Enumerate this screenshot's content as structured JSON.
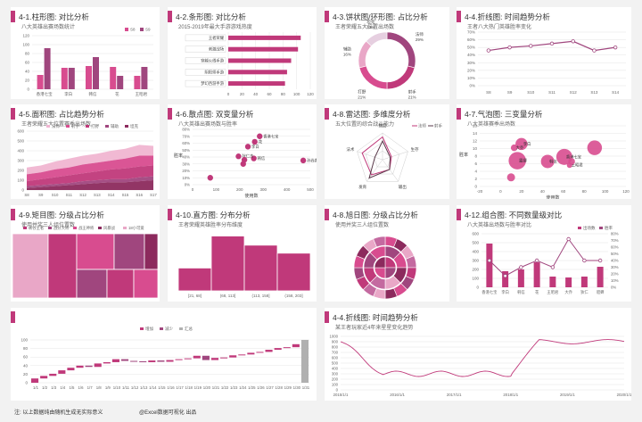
{
  "colors": {
    "pink": "#d84c8f",
    "purple": "#a0467e",
    "magenta": "#c0397a",
    "dark": "#8c2a5d",
    "light": "#e9a7c7",
    "grid": "#e5e5e5"
  },
  "footer": {
    "note": "注: 以上数据纯由随机生成无实际意义",
    "brand": "@Excel数据可视化 出品"
  },
  "chart_data": [
    {
      "id": "c1",
      "type": "bar",
      "title": "4-1.柱形图:  对比分析",
      "subtitle": "八大英雄出赛场数统计",
      "categories": [
        "香港七宝",
        "李白",
        "韩信",
        "花",
        "王昭君"
      ],
      "series": [
        {
          "name": "S8",
          "values": [
            32,
            48,
            52,
            50,
            30
          ]
        },
        {
          "name": "S9",
          "values": [
            92,
            48,
            72,
            30,
            50
          ]
        }
      ],
      "ylim": [
        0,
        120
      ],
      "yticks": [
        0,
        20,
        40,
        60,
        80,
        100,
        120
      ]
    },
    {
      "id": "c2",
      "type": "bar",
      "title": "4-2.条形图:  对比分析",
      "subtitle": "2015-2019年最大手游游戏热度",
      "categories": [
        "王者荣耀",
        "刺激战场",
        "穿越火线手游",
        "阴阳师手游",
        "梦幻西游手游"
      ],
      "values": [
        106,
        102,
        92,
        86,
        83
      ],
      "xlim": [
        0,
        120
      ],
      "xticks": [
        0,
        20,
        40,
        60,
        80,
        100,
        120
      ]
    },
    {
      "id": "c3",
      "type": "pie",
      "title": "4-3.饼状图/环形图:  占比分析",
      "subtitle": "王者荣耀五大位置出场数",
      "labels": [
        "法师",
        "射手",
        "打野",
        "辅助",
        "坦克"
      ],
      "values": [
        29,
        21,
        21,
        16,
        13
      ],
      "percent_labels": [
        "29%",
        "21%",
        "21%",
        "16%",
        "13%"
      ]
    },
    {
      "id": "c4",
      "type": "line",
      "title": "4-4.折线图:  时间趋势分析",
      "subtitle": "王者八大热门英雄胜率变化",
      "categories": [
        "S8",
        "S9",
        "S10",
        "S11",
        "S12",
        "S13",
        "S14"
      ],
      "values": [
        46,
        50,
        52,
        55,
        58,
        46,
        50
      ],
      "ylim": [
        0,
        70
      ],
      "yticks": [
        "0%",
        "10%",
        "20%",
        "30%",
        "40%",
        "50%",
        "60%",
        "70%"
      ]
    },
    {
      "id": "c5",
      "type": "area",
      "title": "4-5.面积图:  占比趋势分析",
      "subtitle": "王者荣耀五大位置赛季出场数",
      "categories": [
        "S8",
        "S9",
        "S10",
        "S11",
        "S12",
        "S13",
        "S14",
        "S15",
        "S16",
        "S17"
      ],
      "series": [
        {
          "name": "法师",
          "values": [
            70,
            70,
            80,
            90,
            90,
            90,
            100,
            100,
            110,
            100
          ]
        },
        {
          "name": "射手",
          "values": [
            70,
            70,
            80,
            80,
            90,
            90,
            90,
            100,
            110,
            100
          ]
        },
        {
          "name": "打野",
          "values": [
            50,
            60,
            70,
            80,
            80,
            90,
            100,
            110,
            110,
            110
          ]
        },
        {
          "name": "辅助",
          "values": [
            20,
            20,
            20,
            20,
            30,
            30,
            30,
            30,
            40,
            40
          ]
        },
        {
          "name": "坦克",
          "values": [
            20,
            30,
            40,
            50,
            60,
            70,
            80,
            80,
            90,
            100
          ]
        }
      ],
      "ylim": [
        0,
        600
      ],
      "yticks": [
        0,
        100,
        200,
        300,
        400,
        500,
        600
      ]
    },
    {
      "id": "c6",
      "type": "scatter",
      "title": "4-6.散点图:  双变量分析",
      "subtitle": "八大英雄出赛场数与胜率",
      "xlabel": "使用数",
      "ylabel": "胜率",
      "points": [
        {
          "label": "香港七宝",
          "x": 285,
          "y": 70
        },
        {
          "label": "花",
          "x": 264,
          "y": 62
        },
        {
          "label": "李白",
          "x": 235,
          "y": 55
        },
        {
          "label": "韩信",
          "x": 260,
          "y": 38
        },
        {
          "label": "狄仁杰",
          "x": 195,
          "y": 41
        },
        {
          "label": "",
          "x": 220,
          "y": 36
        },
        {
          "label": "",
          "x": 215,
          "y": 30
        },
        {
          "label": "孙尚香",
          "x": 470,
          "y": 35
        },
        {
          "label": "",
          "x": 75,
          "y": 10
        }
      ],
      "xlim": [
        0,
        500
      ],
      "ylim": [
        0,
        80
      ],
      "xticks": [
        0,
        100,
        200,
        300,
        400,
        500
      ],
      "yticks": [
        "0%",
        "10%",
        "20%",
        "30%",
        "40%",
        "50%",
        "60%",
        "70%",
        "80%"
      ]
    },
    {
      "id": "c7",
      "type": "radar",
      "title": "4-8.雷达图:  多维度分析",
      "subtitle": "五大位置的综合战斗能力",
      "axes": [
        "辅助",
        "生存",
        "输出",
        "发育",
        "法术"
      ],
      "series": [
        {
          "name": "法师",
          "values": [
            0.85,
            0.35,
            0.45,
            0.7,
            0.8
          ]
        },
        {
          "name": "射手",
          "values": [
            0.7,
            0.3,
            0.45,
            0.85,
            0.3
          ]
        }
      ]
    },
    {
      "id": "c8",
      "type": "scatter",
      "title": "4-7.气泡图:  三变量分析",
      "subtitle": "八大英雄赛季出场数",
      "xlabel": "使用数",
      "ylabel": "胜率",
      "points": [
        {
          "label": "李白",
          "x": 20,
          "y": 11.2,
          "r": 9
        },
        {
          "label": "大乔",
          "x": 13,
          "y": 10.2,
          "r": 5
        },
        {
          "label": "露娜",
          "x": 16,
          "y": 6.8,
          "r": 13
        },
        {
          "label": "王昭君",
          "x": 66,
          "y": 5.6,
          "r": 4
        },
        {
          "label": "香港七宝",
          "x": 61,
          "y": 7.8,
          "r": 12
        },
        {
          "label": "韩信",
          "x": 45,
          "y": 6.6,
          "r": 10
        },
        {
          "label": "",
          "x": 90,
          "y": 10.2,
          "r": 11
        },
        {
          "label": "",
          "x": 10,
          "y": 2.4,
          "r": 6
        },
        {
          "label": "",
          "x": 68,
          "y": 6.6,
          "r": 5
        }
      ],
      "xlim": [
        -20,
        120
      ],
      "ylim": [
        0,
        16
      ],
      "xticks": [
        -20,
        0,
        20,
        40,
        60,
        80,
        100,
        120
      ],
      "yticks": [
        0,
        2,
        4,
        6,
        8,
        10,
        12,
        14,
        16
      ]
    },
    {
      "id": "c9",
      "type": "heatmap",
      "title": "4-9.矩目图:  分级占比分析",
      "subtitle": "使用并奖三人组位置数",
      "legend": [
        "峡谷王者",
        "战分大将",
        "战王神将",
        "风暴战",
        "18小可爱"
      ]
    },
    {
      "id": "c10",
      "type": "bar",
      "title": "4-10.直方图:  分布分析",
      "subtitle": "王者荣耀英雄胜率分布维度",
      "categories": [
        "[21, 68]",
        "(68, 113]",
        "(113, 158]",
        "(158, 203]"
      ],
      "values": [
        20,
        48,
        40,
        33
      ],
      "ylim": [
        0,
        50
      ]
    },
    {
      "id": "c11",
      "type": "pie",
      "title": "4-8.旭日图:  分级占比分析",
      "subtitle": "使用并奖三人组位置数"
    },
    {
      "id": "c12",
      "type": "bar",
      "title": "4-12.组合图:  不同数量级对比",
      "subtitle": "八大英雄出场数与胜率对比",
      "categories": [
        "香港七宝",
        "李白",
        "韩信",
        "花",
        "王昭君",
        "大乔",
        "狄仁",
        "貂蝉"
      ],
      "series": [
        {
          "name": "出场数",
          "values": [
            490,
            180,
            200,
            280,
            120,
            110,
            120,
            230
          ]
        },
        {
          "name": "胜率",
          "values": [
            40,
            17,
            30,
            40,
            30,
            72,
            40,
            40
          ]
        }
      ],
      "ylim": [
        0,
        600
      ],
      "yticks": [
        0,
        100,
        200,
        300,
        400,
        500,
        600
      ],
      "y2ticks": [
        "0%",
        "10%",
        "20%",
        "30%",
        "40%",
        "50%",
        "60%",
        "70%",
        "80%"
      ]
    },
    {
      "id": "c13",
      "type": "bar",
      "title": "",
      "subtitle": "",
      "legend": [
        "增加",
        "减少",
        "汇总"
      ],
      "categories": [
        "1/1",
        "1/2",
        "1/3",
        "1/4",
        "1/5",
        "1/6",
        "1/7",
        "1/8",
        "1/9",
        "1/10",
        "1/11",
        "1/12",
        "1/13",
        "1/14",
        "1/15",
        "1/16",
        "1/17",
        "1/18",
        "1/19",
        "1/20",
        "1/21",
        "1/22",
        "1/23",
        "1/24",
        "1/25",
        "1/26",
        "1/27",
        "1/28",
        "1/29",
        "1/30",
        "1/31"
      ],
      "deltas": [
        10,
        6,
        5,
        8,
        6,
        5,
        -3,
        8,
        3,
        7,
        -4,
        -1,
        -2,
        4,
        -3,
        4,
        2,
        2,
        6,
        -10,
        5,
        1,
        5,
        2,
        4,
        2,
        5,
        4,
        2,
        7,
        100
      ],
      "ylim": [
        0,
        100
      ],
      "yticks": [
        0,
        20,
        40,
        60,
        80,
        100
      ]
    },
    {
      "id": "c14",
      "type": "line",
      "title": "4-4.折线图:  时间趋势分析",
      "subtitle": "某王者玩家近4年来星星变化趋势",
      "categories": [
        "2015/1/1",
        "2016/1/1",
        "2017/1/1",
        "2018/1/1",
        "2019/1/1",
        "2020/1/1"
      ],
      "ylim": [
        0,
        1000
      ],
      "yticks": [
        0,
        100,
        200,
        300,
        400,
        500,
        600,
        700,
        800,
        900,
        1000
      ]
    }
  ]
}
